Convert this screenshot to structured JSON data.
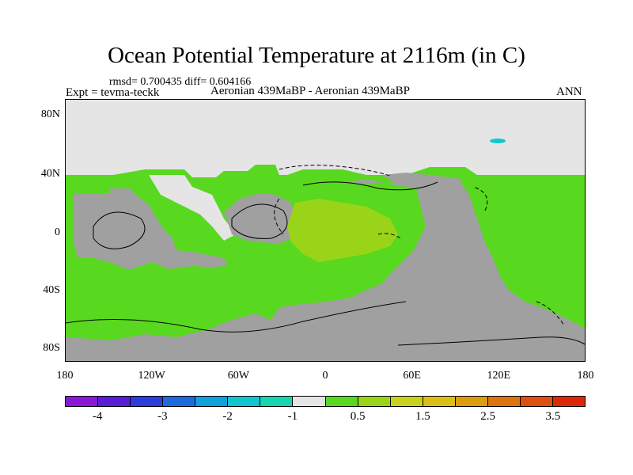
{
  "title": "Ocean Potential Temperature at 2116m (in C)",
  "stats": "rmsd= 0.700435 diff= 0.604166",
  "expt": "Expt = tevma-teckk",
  "center_label": "Aeronian 439MaBP - Aeronian 439MaBP",
  "season": "ANN",
  "lat_labels": [
    "80N",
    "40N",
    "0",
    "40S",
    "80S"
  ],
  "lon_labels": [
    "180",
    "120W",
    "60W",
    "0",
    "60E",
    "120E",
    "180"
  ],
  "colorbar": {
    "colors": [
      "#8a16d8",
      "#5a1ed6",
      "#2c3ed9",
      "#1c6bdc",
      "#0ea1da",
      "#10c6cf",
      "#14d6b1",
      "#e5e5e5",
      "#58d81f",
      "#9ad418",
      "#c8d21a",
      "#dcbf14",
      "#dc9c10",
      "#dc7410",
      "#dc5010",
      "#dc2808"
    ],
    "labels": [
      "-4",
      "-3",
      "-2",
      "-1",
      "0.5",
      "1.5",
      "2.5",
      "3.5"
    ]
  },
  "colors": {
    "land": "#a0a0a0",
    "zero_band": "#e5e5e5",
    "ocean_green": "#58d81f",
    "warm_patch": "#9ad418",
    "cyan_spot": "#10c6cf"
  }
}
